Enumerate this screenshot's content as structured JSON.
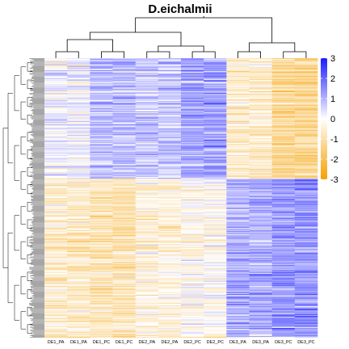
{
  "chart_data": {
    "type": "heatmap",
    "title": "D.eichalmii",
    "xlabel": "",
    "ylabel": "",
    "column_labels": [
      "DE1_PA",
      "DE1_PA",
      "DE1_PC",
      "DE1_PC",
      "DE2_PA",
      "DE2_PA",
      "DE2_PC",
      "DE2_PC",
      "DE3_PA",
      "DE3_PA",
      "DE3_PC",
      "DE3_PC"
    ],
    "row_count": 320,
    "color_scale": {
      "min": -3,
      "max": 3,
      "ticks": [
        3,
        2,
        1,
        0,
        -1,
        -2,
        -3
      ],
      "colors": {
        "low": "#f5a000",
        "mid": "#ffffff",
        "high": "#1a1aff"
      }
    },
    "column_dendrogram": true,
    "row_dendrogram": true,
    "legend_position": "right",
    "blocks": [
      {
        "rows": "top cluster (≈ first 43%)",
        "mean_by_group": {
          "DE1_PA": 0.2,
          "DE1_PC": 1.0,
          "DE2_PA": 0.8,
          "DE2_PC": 1.5,
          "DE3_PA": -0.7,
          "DE3_PC": -1.5
        }
      },
      {
        "rows": "bottom cluster (≈ last 57%)",
        "mean_by_group": {
          "DE1_PA": -0.7,
          "DE1_PC": -1.0,
          "DE2_PA": -0.5,
          "DE2_PC": -0.2,
          "DE3_PA": 1.2,
          "DE3_PC": 1.6
        }
      }
    ]
  }
}
